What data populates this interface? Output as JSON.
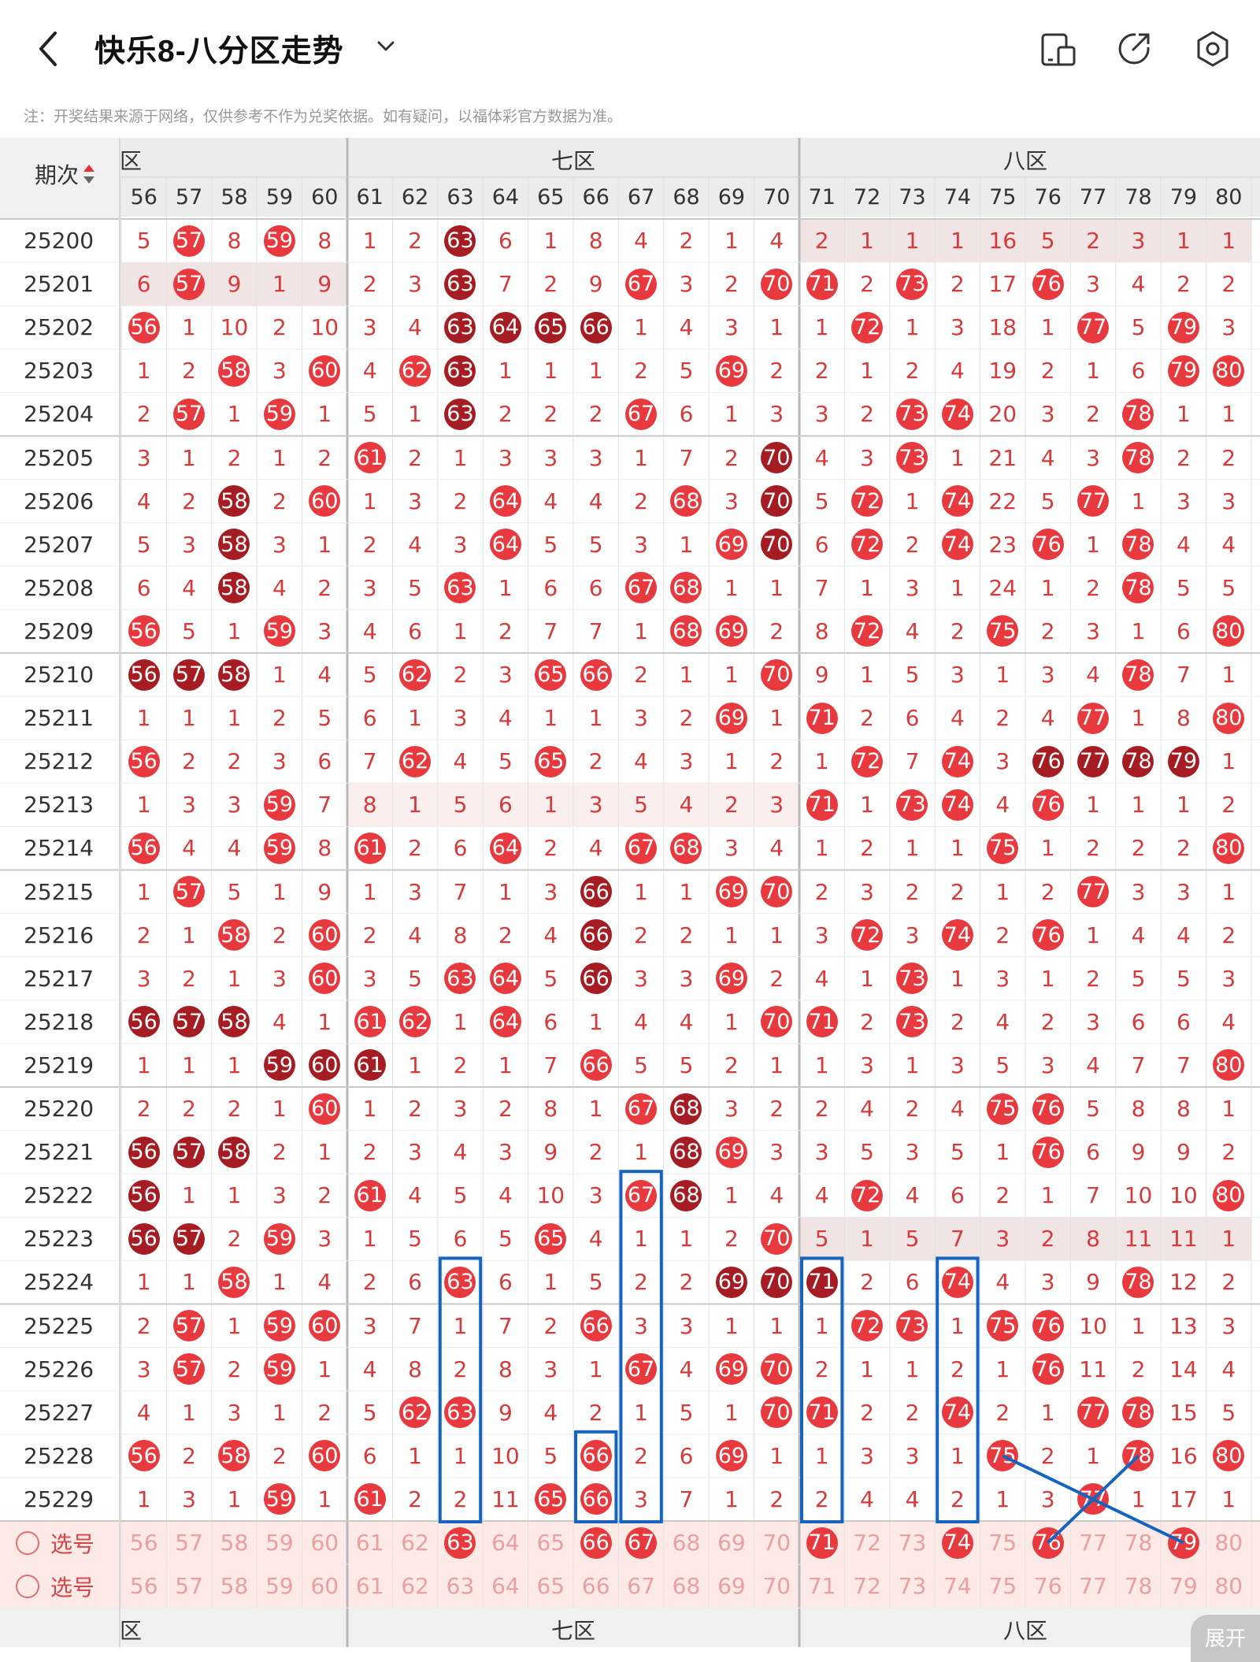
{
  "header": {
    "title": "快乐8-八分区走势",
    "back_icon": "chevron-left-icon",
    "caret_icon": "chevron-down-icon",
    "actions": [
      {
        "name": "device-switch-icon"
      },
      {
        "name": "share-icon"
      },
      {
        "name": "settings-icon"
      }
    ]
  },
  "note": "注：开奖结果来源于网络，仅供参考不作为兑奖依据。如有疑问，以福体彩官方数据为准。",
  "table": {
    "period_header": "期次",
    "sort_icon": "sort-up-down-icon",
    "zones": [
      {
        "label": "六区",
        "visible_label": "区"
      },
      {
        "label": "七区"
      },
      {
        "label": "八区"
      }
    ],
    "columns": [
      "56",
      "57",
      "58",
      "59",
      "60",
      "61",
      "62",
      "63",
      "64",
      "65",
      "66",
      "67",
      "68",
      "69",
      "70",
      "71",
      "72",
      "73",
      "74",
      "75",
      "76",
      "77",
      "78",
      "79",
      "80"
    ],
    "rows": [
      {
        "period": "25200",
        "cells": [
          "5",
          "57",
          "8",
          "59",
          "8",
          "1",
          "2",
          "63",
          "6",
          "1",
          "8",
          "4",
          "2",
          "1",
          "4",
          "2",
          "1",
          "1",
          "1",
          "16",
          "5",
          "2",
          "3",
          "1",
          "1"
        ]
      },
      {
        "period": "25201",
        "cells": [
          "6",
          "57",
          "9",
          "1",
          "9",
          "2",
          "3",
          "63",
          "7",
          "2",
          "9",
          "67",
          "3",
          "2",
          "70",
          "71",
          "2",
          "73",
          "2",
          "17",
          "76",
          "3",
          "4",
          "2",
          "2"
        ]
      },
      {
        "period": "25202",
        "cells": [
          "56",
          "1",
          "10",
          "2",
          "10",
          "3",
          "4",
          "63",
          "64",
          "65",
          "66",
          "1",
          "4",
          "3",
          "1",
          "1",
          "72",
          "1",
          "3",
          "18",
          "1",
          "77",
          "5",
          "79",
          "3"
        ]
      },
      {
        "period": "25203",
        "cells": [
          "1",
          "2",
          "58",
          "3",
          "60",
          "4",
          "62",
          "63",
          "1",
          "1",
          "1",
          "2",
          "5",
          "69",
          "2",
          "2",
          "1",
          "2",
          "4",
          "19",
          "2",
          "1",
          "6",
          "79",
          "80"
        ]
      },
      {
        "period": "25204",
        "cells": [
          "2",
          "57",
          "1",
          "59",
          "1",
          "5",
          "1",
          "63",
          "2",
          "2",
          "2",
          "67",
          "6",
          "1",
          "3",
          "3",
          "2",
          "73",
          "74",
          "20",
          "3",
          "2",
          "78",
          "1",
          "1"
        ]
      },
      {
        "period": "25205",
        "cells": [
          "3",
          "1",
          "2",
          "1",
          "2",
          "61",
          "2",
          "1",
          "3",
          "3",
          "3",
          "1",
          "7",
          "2",
          "70",
          "4",
          "3",
          "73",
          "1",
          "21",
          "4",
          "3",
          "78",
          "2",
          "2"
        ]
      },
      {
        "period": "25206",
        "cells": [
          "4",
          "2",
          "58",
          "2",
          "60",
          "1",
          "3",
          "2",
          "64",
          "4",
          "4",
          "2",
          "68",
          "3",
          "70",
          "5",
          "72",
          "1",
          "74",
          "22",
          "5",
          "77",
          "1",
          "3",
          "3"
        ]
      },
      {
        "period": "25207",
        "cells": [
          "5",
          "3",
          "58",
          "3",
          "1",
          "2",
          "4",
          "3",
          "64",
          "5",
          "5",
          "3",
          "1",
          "69",
          "70",
          "6",
          "72",
          "2",
          "74",
          "23",
          "76",
          "1",
          "78",
          "4",
          "4"
        ]
      },
      {
        "period": "25208",
        "cells": [
          "6",
          "4",
          "58",
          "4",
          "2",
          "3",
          "5",
          "63",
          "1",
          "6",
          "6",
          "67",
          "68",
          "1",
          "1",
          "7",
          "1",
          "3",
          "1",
          "24",
          "1",
          "2",
          "78",
          "5",
          "5"
        ]
      },
      {
        "period": "25209",
        "cells": [
          "56",
          "5",
          "1",
          "59",
          "3",
          "4",
          "6",
          "1",
          "2",
          "7",
          "7",
          "1",
          "68",
          "69",
          "2",
          "8",
          "72",
          "4",
          "2",
          "75",
          "2",
          "3",
          "1",
          "6",
          "80"
        ]
      },
      {
        "period": "25210",
        "cells": [
          "56",
          "57",
          "58",
          "1",
          "4",
          "5",
          "62",
          "2",
          "3",
          "65",
          "66",
          "2",
          "1",
          "1",
          "70",
          "9",
          "1",
          "5",
          "3",
          "1",
          "3",
          "4",
          "78",
          "7",
          "1"
        ]
      },
      {
        "period": "25211",
        "cells": [
          "1",
          "1",
          "1",
          "2",
          "5",
          "6",
          "1",
          "3",
          "4",
          "1",
          "1",
          "3",
          "2",
          "69",
          "1",
          "71",
          "2",
          "6",
          "4",
          "2",
          "4",
          "77",
          "1",
          "8",
          "80"
        ]
      },
      {
        "period": "25212",
        "cells": [
          "56",
          "2",
          "2",
          "3",
          "6",
          "7",
          "62",
          "4",
          "5",
          "65",
          "2",
          "4",
          "3",
          "1",
          "2",
          "1",
          "72",
          "7",
          "74",
          "3",
          "76",
          "77",
          "78",
          "79",
          "1"
        ]
      },
      {
        "period": "25213",
        "cells": [
          "1",
          "3",
          "3",
          "59",
          "7",
          "8",
          "1",
          "5",
          "6",
          "1",
          "3",
          "5",
          "4",
          "2",
          "3",
          "71",
          "1",
          "73",
          "74",
          "4",
          "76",
          "1",
          "1",
          "1",
          "2"
        ]
      },
      {
        "period": "25214",
        "cells": [
          "56",
          "4",
          "4",
          "59",
          "8",
          "61",
          "2",
          "6",
          "64",
          "2",
          "4",
          "67",
          "68",
          "3",
          "4",
          "1",
          "2",
          "1",
          "1",
          "75",
          "1",
          "2",
          "2",
          "2",
          "80"
        ]
      },
      {
        "period": "25215",
        "cells": [
          "1",
          "57",
          "5",
          "1",
          "9",
          "1",
          "3",
          "7",
          "1",
          "3",
          "66",
          "1",
          "1",
          "69",
          "70",
          "2",
          "3",
          "2",
          "2",
          "1",
          "2",
          "77",
          "3",
          "3",
          "1"
        ]
      },
      {
        "period": "25216",
        "cells": [
          "2",
          "1",
          "58",
          "2",
          "60",
          "2",
          "4",
          "8",
          "2",
          "4",
          "66",
          "2",
          "2",
          "1",
          "1",
          "3",
          "72",
          "3",
          "74",
          "2",
          "76",
          "1",
          "4",
          "4",
          "2"
        ]
      },
      {
        "period": "25217",
        "cells": [
          "3",
          "2",
          "1",
          "3",
          "60",
          "3",
          "5",
          "63",
          "64",
          "5",
          "66",
          "3",
          "3",
          "69",
          "2",
          "4",
          "1",
          "73",
          "1",
          "3",
          "1",
          "2",
          "5",
          "5",
          "3"
        ]
      },
      {
        "period": "25218",
        "cells": [
          "56",
          "57",
          "58",
          "4",
          "1",
          "61",
          "62",
          "1",
          "64",
          "6",
          "1",
          "4",
          "4",
          "1",
          "70",
          "71",
          "2",
          "73",
          "2",
          "4",
          "2",
          "3",
          "6",
          "6",
          "4"
        ]
      },
      {
        "period": "25219",
        "cells": [
          "1",
          "1",
          "1",
          "59",
          "60",
          "61",
          "1",
          "2",
          "1",
          "7",
          "66",
          "5",
          "5",
          "2",
          "1",
          "1",
          "3",
          "1",
          "3",
          "5",
          "3",
          "4",
          "7",
          "7",
          "80"
        ]
      },
      {
        "period": "25220",
        "cells": [
          "2",
          "2",
          "2",
          "1",
          "60",
          "1",
          "2",
          "3",
          "2",
          "8",
          "1",
          "67",
          "68",
          "3",
          "2",
          "2",
          "4",
          "2",
          "4",
          "75",
          "76",
          "5",
          "8",
          "8",
          "1"
        ]
      },
      {
        "period": "25221",
        "cells": [
          "56",
          "57",
          "58",
          "2",
          "1",
          "2",
          "3",
          "4",
          "3",
          "9",
          "2",
          "1",
          "68",
          "69",
          "3",
          "3",
          "5",
          "3",
          "5",
          "1",
          "76",
          "6",
          "9",
          "9",
          "2"
        ]
      },
      {
        "period": "25222",
        "cells": [
          "56",
          "1",
          "1",
          "3",
          "2",
          "61",
          "4",
          "5",
          "4",
          "10",
          "3",
          "67",
          "68",
          "1",
          "4",
          "4",
          "72",
          "4",
          "6",
          "2",
          "1",
          "7",
          "10",
          "10",
          "80"
        ]
      },
      {
        "period": "25223",
        "cells": [
          "56",
          "57",
          "2",
          "59",
          "3",
          "1",
          "5",
          "6",
          "5",
          "65",
          "4",
          "1",
          "1",
          "2",
          "70",
          "5",
          "1",
          "5",
          "7",
          "3",
          "2",
          "8",
          "11",
          "11",
          "1"
        ]
      },
      {
        "period": "25224",
        "cells": [
          "1",
          "1",
          "58",
          "1",
          "4",
          "2",
          "6",
          "63",
          "6",
          "1",
          "5",
          "2",
          "2",
          "69",
          "70",
          "71",
          "2",
          "6",
          "74",
          "4",
          "3",
          "9",
          "78",
          "12",
          "2"
        ]
      },
      {
        "period": "25225",
        "cells": [
          "2",
          "57",
          "1",
          "59",
          "60",
          "3",
          "7",
          "1",
          "7",
          "2",
          "66",
          "3",
          "3",
          "1",
          "1",
          "1",
          "72",
          "73",
          "1",
          "75",
          "76",
          "10",
          "1",
          "13",
          "3"
        ]
      },
      {
        "period": "25226",
        "cells": [
          "3",
          "57",
          "2",
          "59",
          "1",
          "4",
          "8",
          "2",
          "8",
          "3",
          "1",
          "67",
          "4",
          "69",
          "70",
          "2",
          "1",
          "1",
          "2",
          "1",
          "76",
          "11",
          "2",
          "14",
          "4"
        ]
      },
      {
        "period": "25227",
        "cells": [
          "4",
          "1",
          "3",
          "1",
          "2",
          "5",
          "62",
          "63",
          "9",
          "4",
          "2",
          "1",
          "5",
          "1",
          "70",
          "71",
          "2",
          "2",
          "74",
          "2",
          "1",
          "77",
          "78",
          "15",
          "5"
        ]
      },
      {
        "period": "25228",
        "cells": [
          "56",
          "2",
          "58",
          "2",
          "60",
          "6",
          "1",
          "1",
          "10",
          "5",
          "66",
          "2",
          "6",
          "69",
          "1",
          "1",
          "3",
          "3",
          "1",
          "75",
          "2",
          "1",
          "78",
          "16",
          "80"
        ]
      },
      {
        "period": "25229",
        "cells": [
          "1",
          "3",
          "1",
          "59",
          "1",
          "61",
          "2",
          "2",
          "11",
          "65",
          "66",
          "3",
          "7",
          "1",
          "2",
          "2",
          "4",
          "4",
          "2",
          "1",
          "3",
          "77",
          "1",
          "17",
          "1"
        ]
      }
    ],
    "selector_rows": [
      {
        "label": "选号",
        "selected": [
          "63",
          "66",
          "67",
          "71",
          "74",
          "76",
          "79"
        ]
      },
      {
        "label": "选号",
        "selected": []
      }
    ],
    "expand_label": "展开",
    "colors": {
      "ball": "#e83a3e",
      "ball_dark": "#a51d23",
      "miss_text": "#d63a3a",
      "highlight_row": "#f3e3e3",
      "frame_blue": "#1565c0"
    }
  }
}
